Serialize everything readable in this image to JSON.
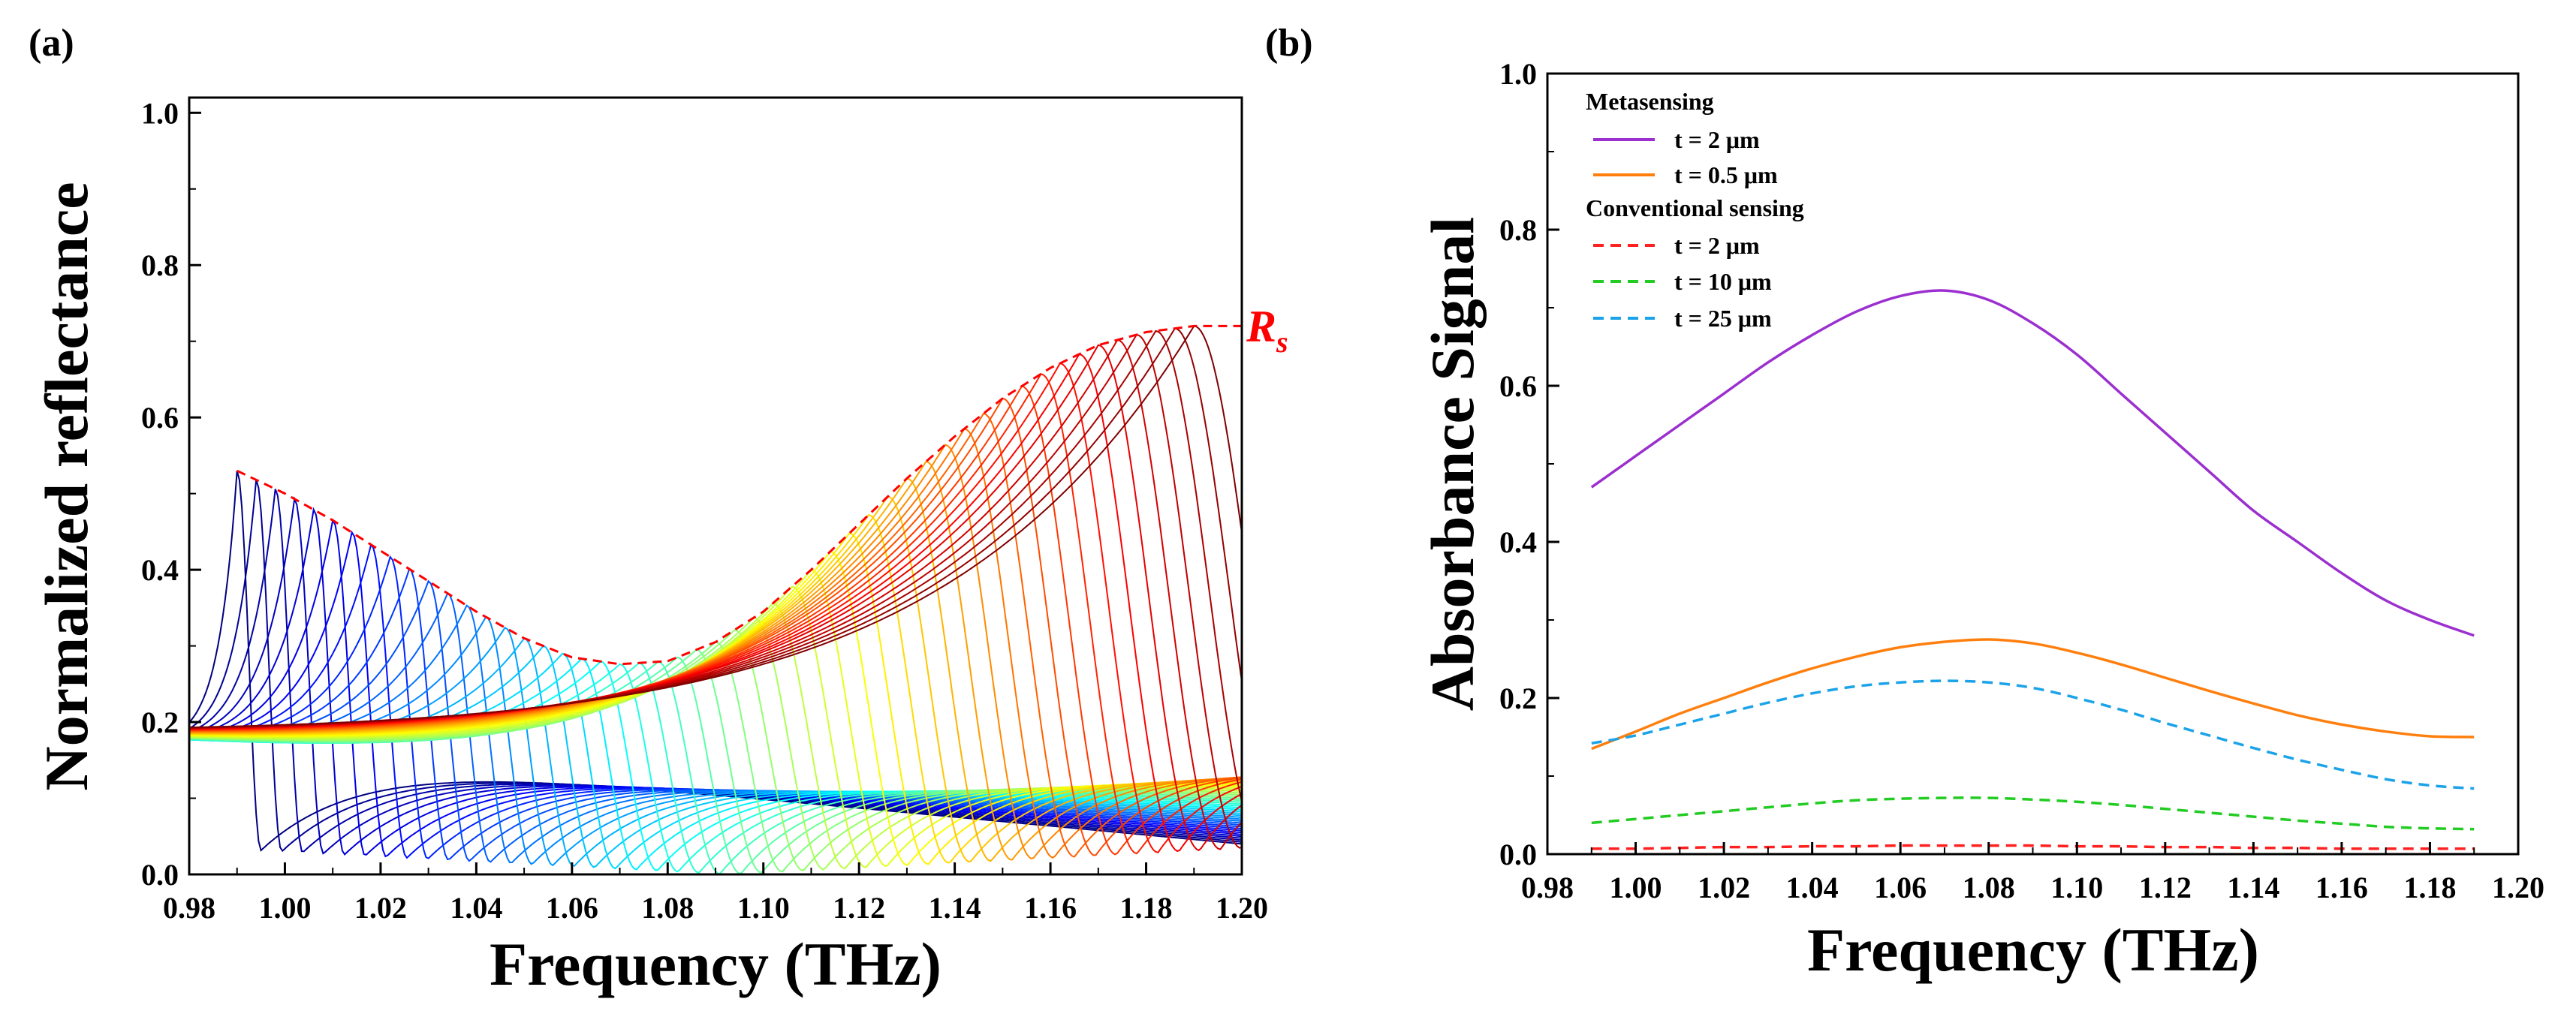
{
  "chart_data": [
    {
      "id": "a",
      "panel_label": "(a)",
      "type": "line",
      "title": "",
      "xlabel": "Frequency (THz)",
      "ylabel": "Normalized reflectance",
      "xlim": [
        0.98,
        1.2
      ],
      "ylim": [
        0.0,
        1.02
      ],
      "grid": false,
      "xticks": [
        "0.98",
        "1.00",
        "1.02",
        "1.04",
        "1.06",
        "1.08",
        "1.10",
        "1.12",
        "1.14",
        "1.16",
        "1.18",
        "1.20"
      ],
      "yticks": [
        "0.0",
        "0.2",
        "0.4",
        "0.6",
        "0.8",
        "1.0"
      ],
      "annotation": {
        "text": "R",
        "subscript": "s",
        "color": "#ff0000"
      },
      "resonance_family": {
        "count": 51,
        "colormap": "jet",
        "line_width_note": "thin",
        "resonance_freq_range": [
          0.99,
          1.19
        ],
        "baseline_start_range": [
          0.17,
          0.182
        ],
        "baseline_end_range": [
          0.04,
          0.165
        ],
        "dip_depth_range": [
          0.0,
          0.04
        ]
      },
      "envelope": {
        "name": "R_s",
        "style": "dashed",
        "color": "#ff0000",
        "x": [
          0.99,
          1.0,
          1.01,
          1.02,
          1.03,
          1.04,
          1.05,
          1.06,
          1.07,
          1.08,
          1.09,
          1.1,
          1.11,
          1.12,
          1.13,
          1.14,
          1.15,
          1.16,
          1.17,
          1.18,
          1.19,
          1.2
        ],
        "y": [
          0.53,
          0.5,
          0.465,
          0.425,
          0.385,
          0.345,
          0.31,
          0.285,
          0.276,
          0.28,
          0.305,
          0.345,
          0.4,
          0.46,
          0.52,
          0.575,
          0.625,
          0.665,
          0.695,
          0.712,
          0.72,
          0.72
        ]
      }
    },
    {
      "id": "b",
      "panel_label": "(b)",
      "type": "line",
      "title": "",
      "xlabel": "Frequency (THz)",
      "ylabel": "Absorbance Signal",
      "xlim": [
        0.98,
        1.2
      ],
      "ylim": [
        0.0,
        1.0
      ],
      "grid": false,
      "xticks": [
        "0.98",
        "1.00",
        "1.02",
        "1.04",
        "1.06",
        "1.08",
        "1.10",
        "1.12",
        "1.14",
        "1.16",
        "1.18",
        "1.20"
      ],
      "yticks": [
        "0.0",
        "0.2",
        "0.4",
        "0.6",
        "0.8",
        "1.0"
      ],
      "legend_position": "top-left",
      "legend_groups": [
        {
          "title": "Metasensing",
          "series": [
            0,
            1
          ]
        },
        {
          "title": "Conventional sensing",
          "series": [
            2,
            3,
            4
          ]
        }
      ],
      "x": [
        0.99,
        1.0,
        1.01,
        1.02,
        1.03,
        1.04,
        1.05,
        1.06,
        1.07,
        1.08,
        1.09,
        1.1,
        1.11,
        1.12,
        1.13,
        1.14,
        1.15,
        1.16,
        1.17,
        1.18,
        1.19
      ],
      "series": [
        {
          "name": "t = 2 μm",
          "color": "#9b2fcf",
          "dashed": false,
          "values": [
            0.47,
            0.51,
            0.55,
            0.59,
            0.63,
            0.665,
            0.695,
            0.715,
            0.722,
            0.71,
            0.68,
            0.64,
            0.59,
            0.54,
            0.49,
            0.44,
            0.4,
            0.36,
            0.325,
            0.3,
            0.28
          ]
        },
        {
          "name": "t = 0.5 μm",
          "color": "#ff7f0e",
          "dashed": false,
          "values": [
            0.135,
            0.157,
            0.18,
            0.2,
            0.22,
            0.238,
            0.253,
            0.265,
            0.272,
            0.275,
            0.27,
            0.258,
            0.243,
            0.226,
            0.209,
            0.193,
            0.178,
            0.166,
            0.157,
            0.151,
            0.15
          ]
        },
        {
          "name": "t = 2 μm",
          "color": "#ff2020",
          "dashed": true,
          "values": [
            0.007,
            0.007,
            0.008,
            0.009,
            0.009,
            0.01,
            0.01,
            0.011,
            0.011,
            0.011,
            0.011,
            0.01,
            0.01,
            0.009,
            0.009,
            0.008,
            0.008,
            0.007,
            0.007,
            0.007,
            0.007
          ]
        },
        {
          "name": "t = 10 μm",
          "color": "#22cc22",
          "dashed": true,
          "values": [
            0.04,
            0.045,
            0.05,
            0.055,
            0.06,
            0.065,
            0.069,
            0.071,
            0.072,
            0.072,
            0.07,
            0.067,
            0.063,
            0.058,
            0.053,
            0.048,
            0.043,
            0.039,
            0.035,
            0.033,
            0.032
          ]
        },
        {
          "name": "t = 25 μm",
          "color": "#1aa3e8",
          "dashed": true,
          "values": [
            0.142,
            0.152,
            0.166,
            0.18,
            0.194,
            0.206,
            0.215,
            0.22,
            0.222,
            0.22,
            0.213,
            0.2,
            0.185,
            0.168,
            0.152,
            0.136,
            0.121,
            0.108,
            0.096,
            0.088,
            0.084
          ]
        }
      ]
    }
  ]
}
